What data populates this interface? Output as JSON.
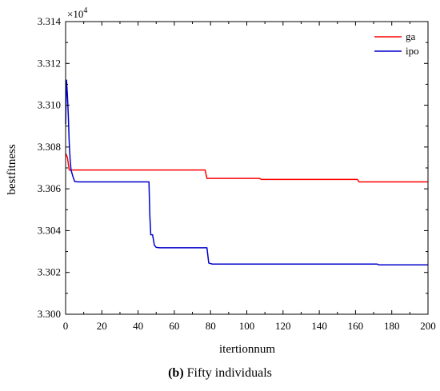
{
  "chart_data": {
    "type": "line",
    "xlabel": "itertionnum",
    "ylabel": "bestfitness",
    "y_multiplier_label": "×10",
    "y_multiplier_exponent": "4",
    "xlim": [
      0,
      200
    ],
    "ylim": [
      3.3,
      3.314
    ],
    "x_ticks": [
      "0",
      "20",
      "40",
      "60",
      "80",
      "100",
      "120",
      "140",
      "160",
      "180",
      "200"
    ],
    "y_ticks": [
      "3.300",
      "3.302",
      "3.304",
      "3.306",
      "3.308",
      "3.310",
      "3.312",
      "3.314"
    ],
    "grid": false,
    "legend_position": "top-right",
    "series": [
      {
        "name": "ga",
        "color": "#ff0000",
        "points": [
          [
            0,
            3.3077
          ],
          [
            1,
            3.3075
          ],
          [
            2,
            3.3069
          ],
          [
            3,
            3.3069
          ],
          [
            77,
            3.3069
          ],
          [
            78,
            3.3065
          ],
          [
            107,
            3.3065
          ],
          [
            108,
            3.30645
          ],
          [
            161,
            3.30645
          ],
          [
            162,
            3.30633
          ],
          [
            200,
            3.30633
          ]
        ]
      },
      {
        "name": "ipo",
        "color": "#0000cc",
        "points": [
          [
            0,
            3.3091
          ],
          [
            0.5,
            3.3112
          ],
          [
            1,
            3.3105
          ],
          [
            1.5,
            3.3095
          ],
          [
            2,
            3.3082
          ],
          [
            2.5,
            3.3074
          ],
          [
            3,
            3.3069
          ],
          [
            4,
            3.3066
          ],
          [
            5,
            3.30635
          ],
          [
            7,
            3.30633
          ],
          [
            46,
            3.30633
          ],
          [
            46.5,
            3.3047
          ],
          [
            47,
            3.3038
          ],
          [
            48,
            3.3038
          ],
          [
            49,
            3.3033
          ],
          [
            50,
            3.3032
          ],
          [
            52,
            3.30318
          ],
          [
            78,
            3.30318
          ],
          [
            79,
            3.30245
          ],
          [
            81,
            3.3024
          ],
          [
            172,
            3.3024
          ],
          [
            173,
            3.30236
          ],
          [
            200,
            3.30236
          ]
        ]
      }
    ],
    "caption_bold": "(b)",
    "caption_text": " Fifty individuals"
  },
  "colors": {
    "axis": "#000000",
    "background": "#ffffff"
  }
}
